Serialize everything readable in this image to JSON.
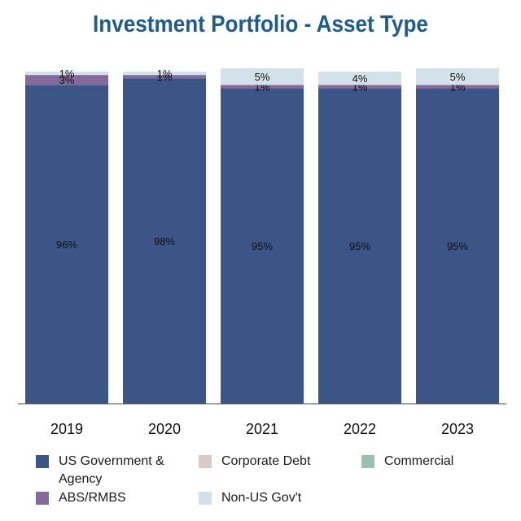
{
  "chart_data": {
    "type": "bar",
    "stacked": true,
    "title": "Investment Portfolio - Asset Type",
    "categories": [
      "2019",
      "2020",
      "2021",
      "2022",
      "2023"
    ],
    "series": [
      {
        "name": "US Government & Agency",
        "color": "#3c5486",
        "values": [
          96,
          98,
          95,
          95,
          95
        ],
        "labels": [
          "96%",
          "98%",
          "95%",
          "95%",
          "95%"
        ]
      },
      {
        "name": "Corporate Debt",
        "color": "#d9ccc8",
        "values": [
          0,
          0,
          0,
          0,
          0
        ],
        "labels": [
          "",
          "",
          "",
          "",
          ""
        ]
      },
      {
        "name": "Commercial",
        "color": "#9dbfb0",
        "values": [
          0,
          0,
          0,
          0,
          0
        ],
        "labels": [
          "",
          "",
          "",
          "",
          ""
        ]
      },
      {
        "name": "ABS/RMBS",
        "color": "#856a9b",
        "values": [
          3,
          1,
          1,
          1,
          1
        ],
        "labels": [
          "3%",
          "1%",
          "1%",
          "1%",
          "1%"
        ]
      },
      {
        "name": "Non-US Gov't",
        "color": "#d3e1e8",
        "values": [
          1,
          1,
          5,
          4,
          5
        ],
        "labels": [
          "1%",
          "1%",
          "5%",
          "4%",
          "5%"
        ]
      }
    ],
    "xlabel": "",
    "ylabel": "",
    "ylim": [
      0,
      100
    ],
    "legend_position": "bottom"
  }
}
